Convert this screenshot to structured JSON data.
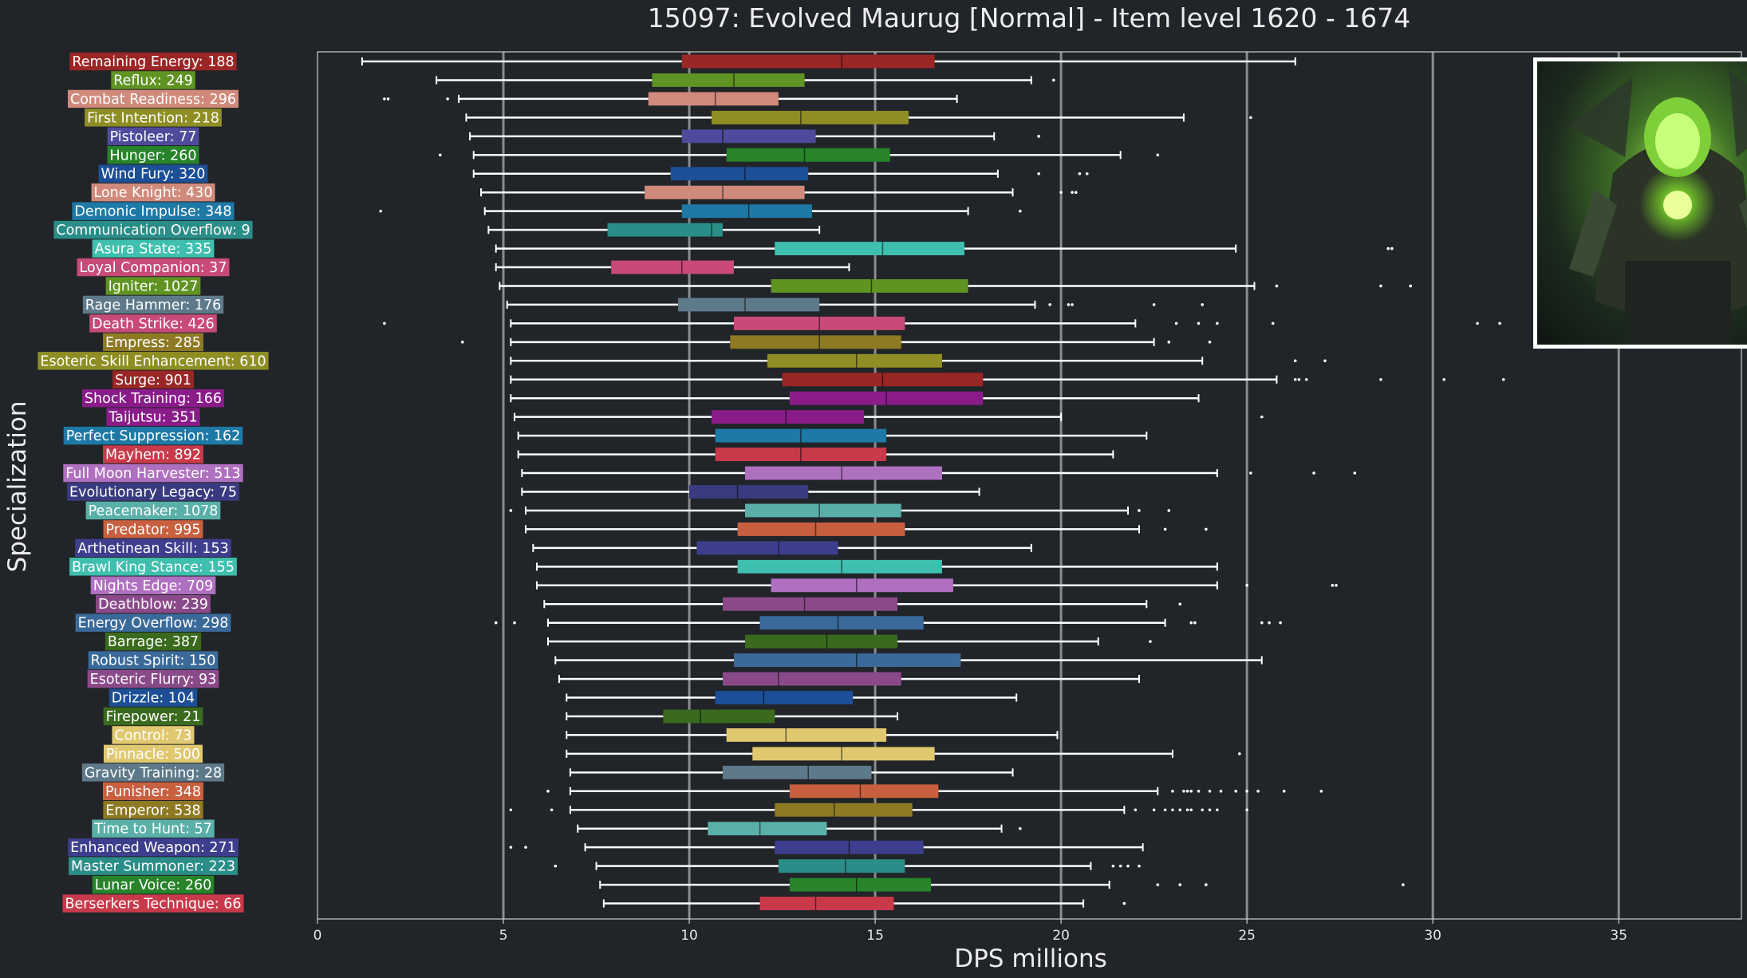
{
  "chart_data": {
    "type": "box",
    "title": "15097: Evolved Maurug [Normal] - Item level 1620 - 1674",
    "xlabel": "DPS millions",
    "ylabel": "Specialization",
    "xlim": [
      0,
      38.3
    ],
    "xticks": [
      0,
      5,
      10,
      15,
      20,
      25,
      30,
      35
    ],
    "grid": "vertical",
    "background": "#212428",
    "series": [
      {
        "label": "Remaining Energy: 188",
        "color": "#9b2626",
        "min": 1.2,
        "q1": 9.8,
        "median": 14.1,
        "q3": 16.6,
        "max": 26.3,
        "outliers": []
      },
      {
        "label": "Reflux: 249",
        "color": "#5f9322",
        "min": 3.2,
        "q1": 9.0,
        "median": 11.2,
        "q3": 13.1,
        "max": 19.2,
        "outliers": [
          19.8
        ]
      },
      {
        "label": "Combat Readiness: 296",
        "color": "#d08a7c",
        "min": 3.8,
        "q1": 8.9,
        "median": 10.7,
        "q3": 12.4,
        "max": 17.2,
        "outliers": [
          1.8,
          1.9,
          3.5
        ]
      },
      {
        "label": "First Intention: 218",
        "color": "#8e8e24",
        "min": 4.0,
        "q1": 10.6,
        "median": 13.0,
        "q3": 15.9,
        "max": 23.3,
        "outliers": [
          25.1
        ]
      },
      {
        "label": "Pistoleer: 77",
        "color": "#4e4a9c",
        "min": 4.1,
        "q1": 9.8,
        "median": 10.9,
        "q3": 13.4,
        "max": 18.2,
        "outliers": [
          19.4
        ]
      },
      {
        "label": "Hunger: 260",
        "color": "#27842a",
        "min": 4.2,
        "q1": 11.0,
        "median": 13.1,
        "q3": 15.4,
        "max": 21.6,
        "outliers": [
          3.3,
          22.6
        ]
      },
      {
        "label": "Wind Fury: 320",
        "color": "#1c4f96",
        "min": 4.2,
        "q1": 9.5,
        "median": 11.5,
        "q3": 13.2,
        "max": 18.3,
        "outliers": [
          19.4,
          20.5,
          20.7
        ]
      },
      {
        "label": "Lone Knight: 430",
        "color": "#d08a7c",
        "min": 4.4,
        "q1": 8.8,
        "median": 10.9,
        "q3": 13.1,
        "max": 18.7,
        "outliers": [
          20.0,
          20.3,
          20.4
        ]
      },
      {
        "label": "Demonic Impulse: 348",
        "color": "#1e79a6",
        "min": 4.5,
        "q1": 9.8,
        "median": 11.6,
        "q3": 13.3,
        "max": 17.5,
        "outliers": [
          1.7,
          18.9
        ]
      },
      {
        "label": "Communication Overflow: 9",
        "color": "#2a8d87",
        "min": 4.6,
        "q1": 7.8,
        "median": 10.6,
        "q3": 10.9,
        "max": 13.5,
        "outliers": []
      },
      {
        "label": "Asura State: 335",
        "color": "#3fbfae",
        "min": 4.8,
        "q1": 12.3,
        "median": 15.2,
        "q3": 17.4,
        "max": 24.7,
        "outliers": [
          28.8,
          28.9
        ]
      },
      {
        "label": "Loyal Companion: 37",
        "color": "#c84a78",
        "min": 4.8,
        "q1": 7.9,
        "median": 9.8,
        "q3": 11.2,
        "max": 14.3,
        "outliers": []
      },
      {
        "label": "Igniter: 1027",
        "color": "#5f9322",
        "min": 4.9,
        "q1": 12.2,
        "median": 14.9,
        "q3": 17.5,
        "max": 25.2,
        "outliers": [
          25.8,
          28.6,
          29.4
        ]
      },
      {
        "label": "Rage Hammer: 176",
        "color": "#5e7a8a",
        "min": 5.1,
        "q1": 9.7,
        "median": 11.5,
        "q3": 13.5,
        "max": 19.3,
        "outliers": [
          19.7,
          20.2,
          20.3,
          22.5,
          23.8
        ]
      },
      {
        "label": "Death Strike: 426",
        "color": "#c84a78",
        "min": 5.2,
        "q1": 11.2,
        "median": 13.5,
        "q3": 15.8,
        "max": 22.0,
        "outliers": [
          1.8,
          23.1,
          23.7,
          24.2,
          25.7,
          31.2,
          31.8
        ]
      },
      {
        "label": "Empress: 285",
        "color": "#8e7a24",
        "min": 5.2,
        "q1": 11.1,
        "median": 13.5,
        "q3": 15.7,
        "max": 22.5,
        "outliers": [
          3.9,
          22.9,
          24.0
        ]
      },
      {
        "label": "Esoteric Skill Enhancement: 610",
        "color": "#8e8e24",
        "min": 5.2,
        "q1": 12.1,
        "median": 14.5,
        "q3": 16.8,
        "max": 23.8,
        "outliers": [
          26.3,
          27.1
        ]
      },
      {
        "label": "Surge: 901",
        "color": "#9b2626",
        "min": 5.2,
        "q1": 12.5,
        "median": 15.2,
        "q3": 17.9,
        "max": 25.8,
        "outliers": [
          26.3,
          26.4,
          26.6,
          28.6,
          30.3,
          31.9
        ]
      },
      {
        "label": "Shock Training: 166",
        "color": "#8a1c8a",
        "min": 5.2,
        "q1": 12.7,
        "median": 15.3,
        "q3": 17.9,
        "max": 23.7,
        "outliers": []
      },
      {
        "label": "Taijutsu: 351",
        "color": "#8a1c8a",
        "min": 5.3,
        "q1": 10.6,
        "median": 12.6,
        "q3": 14.7,
        "max": 20.0,
        "outliers": [
          25.4
        ]
      },
      {
        "label": "Perfect Suppression: 162",
        "color": "#1e79a6",
        "min": 5.4,
        "q1": 10.7,
        "median": 13.0,
        "q3": 15.3,
        "max": 22.3,
        "outliers": []
      },
      {
        "label": "Mayhem: 892",
        "color": "#c83a4a",
        "min": 5.4,
        "q1": 10.7,
        "median": 13.0,
        "q3": 15.3,
        "max": 21.4,
        "outliers": []
      },
      {
        "label": "Full Moon Harvester: 513",
        "color": "#b070c0",
        "min": 5.5,
        "q1": 11.5,
        "median": 14.1,
        "q3": 16.8,
        "max": 24.2,
        "outliers": [
          25.1,
          26.8,
          27.9
        ]
      },
      {
        "label": "Evolutionary Legacy: 75",
        "color": "#3a3a80",
        "min": 5.5,
        "q1": 10.0,
        "median": 11.3,
        "q3": 13.2,
        "max": 17.8,
        "outliers": []
      },
      {
        "label": "Peacemaker: 1078",
        "color": "#5ab0a8",
        "min": 5.6,
        "q1": 11.5,
        "median": 13.5,
        "q3": 15.7,
        "max": 21.8,
        "outliers": [
          5.2,
          22.1,
          22.9
        ]
      },
      {
        "label": "Predator: 995",
        "color": "#c86040",
        "min": 5.6,
        "q1": 11.3,
        "median": 13.4,
        "q3": 15.8,
        "max": 22.1,
        "outliers": [
          22.8,
          23.9
        ]
      },
      {
        "label": "Arthetinean Skill: 153",
        "color": "#3e3e8e",
        "min": 5.8,
        "q1": 10.2,
        "median": 12.4,
        "q3": 14.0,
        "max": 19.2,
        "outliers": []
      },
      {
        "label": "Brawl King Stance: 155",
        "color": "#3fbfae",
        "min": 5.9,
        "q1": 11.3,
        "median": 14.1,
        "q3": 16.8,
        "max": 24.2,
        "outliers": []
      },
      {
        "label": "Nights Edge: 709",
        "color": "#b070c0",
        "min": 5.9,
        "q1": 12.2,
        "median": 14.5,
        "q3": 17.1,
        "max": 24.2,
        "outliers": [
          25.0,
          27.3,
          27.4
        ]
      },
      {
        "label": "Deathblow: 239",
        "color": "#8a4a8a",
        "min": 6.1,
        "q1": 10.9,
        "median": 13.1,
        "q3": 15.6,
        "max": 22.3,
        "outliers": [
          23.2
        ]
      },
      {
        "label": "Energy Overflow: 298",
        "color": "#3a6a9a",
        "min": 6.2,
        "q1": 11.9,
        "median": 14.0,
        "q3": 16.3,
        "max": 22.8,
        "outliers": [
          4.8,
          5.3,
          23.5,
          23.6,
          25.4,
          25.6,
          25.9
        ]
      },
      {
        "label": "Barrage: 387",
        "color": "#3a6a1e",
        "min": 6.2,
        "q1": 11.5,
        "median": 13.7,
        "q3": 15.6,
        "max": 21.0,
        "outliers": [
          22.4
        ]
      },
      {
        "label": "Robust Spirit: 150",
        "color": "#3a6a9a",
        "min": 6.4,
        "q1": 11.2,
        "median": 14.5,
        "q3": 17.3,
        "max": 25.4,
        "outliers": []
      },
      {
        "label": "Esoteric Flurry: 93",
        "color": "#8a4a8a",
        "min": 6.5,
        "q1": 10.9,
        "median": 12.4,
        "q3": 15.7,
        "max": 22.1,
        "outliers": []
      },
      {
        "label": "Drizzle: 104",
        "color": "#1c4f96",
        "min": 6.7,
        "q1": 10.7,
        "median": 12.0,
        "q3": 14.4,
        "max": 18.8,
        "outliers": []
      },
      {
        "label": "Firepower: 21",
        "color": "#3a6a1e",
        "min": 6.7,
        "q1": 9.3,
        "median": 10.3,
        "q3": 12.3,
        "max": 15.6,
        "outliers": []
      },
      {
        "label": "Control: 73",
        "color": "#e0c870",
        "min": 6.7,
        "q1": 11.0,
        "median": 12.6,
        "q3": 15.3,
        "max": 19.9,
        "outliers": []
      },
      {
        "label": "Pinnacle: 500",
        "color": "#e0c870",
        "min": 6.7,
        "q1": 11.7,
        "median": 14.1,
        "q3": 16.6,
        "max": 23.0,
        "outliers": [
          24.8
        ]
      },
      {
        "label": "Gravity Training: 28",
        "color": "#5e7a8a",
        "min": 6.8,
        "q1": 10.9,
        "median": 13.2,
        "q3": 14.9,
        "max": 18.7,
        "outliers": []
      },
      {
        "label": "Punisher: 348",
        "color": "#c86040",
        "min": 6.8,
        "q1": 12.7,
        "median": 14.6,
        "q3": 16.7,
        "max": 22.6,
        "outliers": [
          6.2,
          23.0,
          23.3,
          23.4,
          23.5,
          23.7,
          24.0,
          24.3,
          24.7,
          25.0,
          25.3,
          26.0,
          27.0
        ]
      },
      {
        "label": "Emperor: 538",
        "color": "#8e7a24",
        "min": 6.8,
        "q1": 12.3,
        "median": 13.9,
        "q3": 16.0,
        "max": 21.7,
        "outliers": [
          5.2,
          6.3,
          22.0,
          22.5,
          22.8,
          23.0,
          23.2,
          23.4,
          23.5,
          23.8,
          24.0,
          24.2,
          25.0
        ]
      },
      {
        "label": "Time to Hunt: 57",
        "color": "#5ab0a8",
        "min": 7.0,
        "q1": 10.5,
        "median": 11.9,
        "q3": 13.7,
        "max": 18.4,
        "outliers": [
          18.9
        ]
      },
      {
        "label": "Enhanced Weapon: 271",
        "color": "#3e3e8e",
        "min": 7.2,
        "q1": 12.3,
        "median": 14.3,
        "q3": 16.3,
        "max": 22.2,
        "outliers": [
          5.2,
          5.6
        ]
      },
      {
        "label": "Master Summoner: 223",
        "color": "#2a8d87",
        "min": 7.5,
        "q1": 12.4,
        "median": 14.2,
        "q3": 15.8,
        "max": 20.8,
        "outliers": [
          6.4,
          21.4,
          21.6,
          21.8,
          22.1
        ]
      },
      {
        "label": "Lunar Voice: 260",
        "color": "#27842a",
        "min": 7.6,
        "q1": 12.7,
        "median": 14.5,
        "q3": 16.5,
        "max": 21.3,
        "outliers": [
          22.6,
          23.2,
          23.9,
          29.2
        ]
      },
      {
        "label": "Berserkers Technique: 66",
        "color": "#c83a4a",
        "min": 7.7,
        "q1": 11.9,
        "median": 13.4,
        "q3": 15.5,
        "max": 20.6,
        "outliers": [
          21.7
        ]
      }
    ]
  }
}
